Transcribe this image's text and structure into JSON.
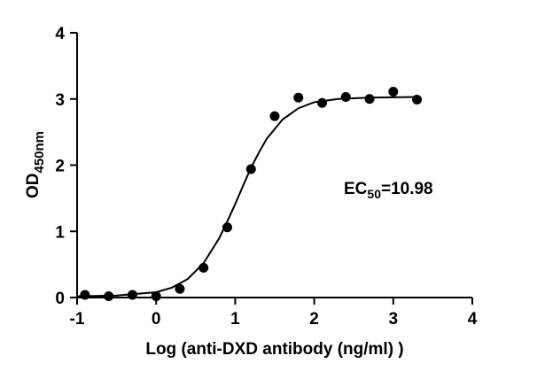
{
  "chart_data": {
    "type": "scatter",
    "x_label": "Log (anti-DXD antibody (ng/ml) )",
    "y_label": "OD",
    "y_label_sub": "450nm",
    "annotation": {
      "main": "EC",
      "sub": "50",
      "rest": "=10.98"
    },
    "x": [
      -0.9,
      -0.6,
      -0.3,
      0,
      0.3,
      0.6,
      0.9,
      1.2,
      1.5,
      1.8,
      2.1,
      2.4,
      2.7,
      3.0,
      3.3
    ],
    "values": [
      0.04,
      0.02,
      0.04,
      0.02,
      0.13,
      0.45,
      1.06,
      1.94,
      2.74,
      3.02,
      2.94,
      3.03,
      3.0,
      3.11,
      2.99
    ],
    "color": "#000000",
    "fit": {
      "x": [
        -1,
        -0.5,
        0,
        0.2,
        0.4,
        0.6,
        0.8,
        0.9,
        1.0,
        1.1,
        1.2,
        1.3,
        1.4,
        1.6,
        1.8,
        2.0,
        2.3,
        2.7,
        3.3
      ],
      "values": [
        0.02,
        0.03,
        0.08,
        0.15,
        0.28,
        0.52,
        0.9,
        1.15,
        1.41,
        1.69,
        1.96,
        2.19,
        2.4,
        2.69,
        2.86,
        2.95,
        3.0,
        3.02,
        3.03
      ]
    },
    "xlim": [
      -1,
      4
    ],
    "xticks": [
      -1,
      0,
      1,
      2,
      3,
      4
    ],
    "ylim": [
      0,
      4
    ],
    "yticks": [
      0,
      1,
      2,
      3,
      4
    ]
  }
}
